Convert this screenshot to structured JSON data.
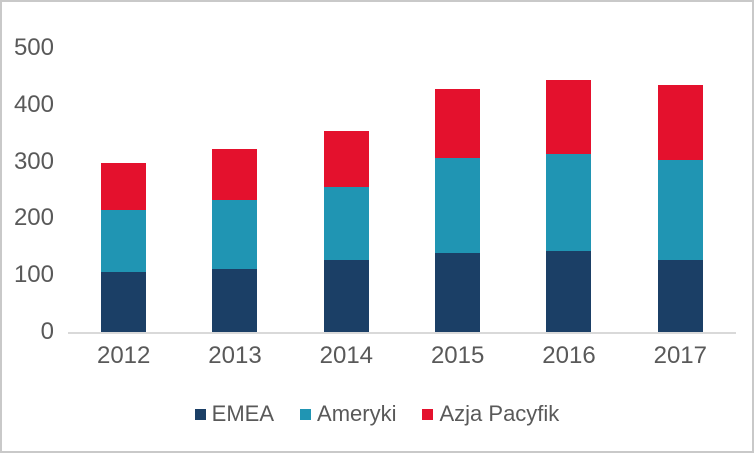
{
  "chart_data": {
    "type": "bar",
    "stacked": true,
    "title": "",
    "xlabel": "",
    "ylabel": "",
    "categories": [
      "2012",
      "2013",
      "2014",
      "2015",
      "2016",
      "2017"
    ],
    "series": [
      {
        "name": "EMEA",
        "color": "#1B3F66",
        "values": [
          105,
          111,
          126,
          139,
          142,
          126
        ]
      },
      {
        "name": "Ameryki",
        "color": "#2095B3",
        "values": [
          110,
          122,
          129,
          168,
          170,
          176
        ]
      },
      {
        "name": "Azja Pacyfik",
        "color": "#E4112D",
        "values": [
          83,
          89,
          99,
          121,
          131,
          132
        ]
      }
    ],
    "totals": [
      298,
      322,
      354,
      428,
      443,
      434
    ],
    "ylim": [
      0,
      500
    ],
    "yticks": [
      0,
      100,
      200,
      300,
      400,
      500
    ],
    "grid": false,
    "legend_position": "bottom"
  },
  "colors": {
    "tick_text": "#595959",
    "axis_line": "#D9D9D9",
    "frame_border": "#C9C9C9",
    "background": "#FFFFFF"
  }
}
